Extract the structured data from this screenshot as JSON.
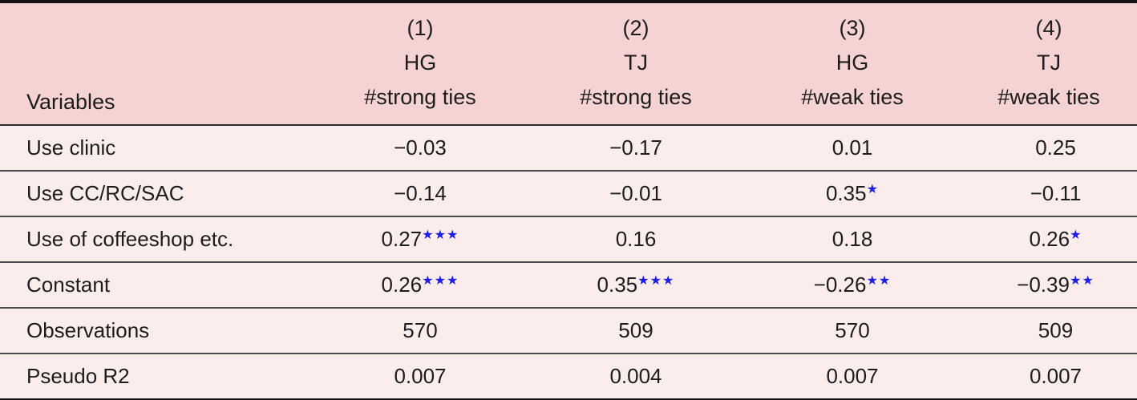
{
  "table": {
    "header": {
      "variables_label": "Variables",
      "columns": [
        {
          "num": "(1)",
          "group": "HG",
          "measure": "#strong ties"
        },
        {
          "num": "(2)",
          "group": "TJ",
          "measure": "#strong ties"
        },
        {
          "num": "(3)",
          "group": "HG",
          "measure": "#weak ties"
        },
        {
          "num": "(4)",
          "group": "TJ",
          "measure": "#weak ties"
        }
      ]
    },
    "rows": [
      {
        "label": "Use clinic",
        "cells": [
          {
            "v": "−0.03",
            "s": ""
          },
          {
            "v": "−0.17",
            "s": ""
          },
          {
            "v": "0.01",
            "s": ""
          },
          {
            "v": "0.25",
            "s": ""
          }
        ]
      },
      {
        "label": "Use CC/RC/SAC",
        "cells": [
          {
            "v": "−0.14",
            "s": ""
          },
          {
            "v": "−0.01",
            "s": ""
          },
          {
            "v": "0.35",
            "s": "★"
          },
          {
            "v": "−0.11",
            "s": ""
          }
        ]
      },
      {
        "label": "Use of coffeeshop etc.",
        "cells": [
          {
            "v": "0.27",
            "s": "★★★"
          },
          {
            "v": "0.16",
            "s": ""
          },
          {
            "v": "0.18",
            "s": ""
          },
          {
            "v": "0.26",
            "s": "★"
          }
        ]
      },
      {
        "label": "Constant",
        "cells": [
          {
            "v": "0.26",
            "s": "★★★"
          },
          {
            "v": "0.35",
            "s": "★★★"
          },
          {
            "v": "−0.26",
            "s": "★★"
          },
          {
            "v": "−0.39",
            "s": "★★"
          }
        ]
      },
      {
        "label": "Observations",
        "cells": [
          {
            "v": "570",
            "s": ""
          },
          {
            "v": "509",
            "s": ""
          },
          {
            "v": "570",
            "s": ""
          },
          {
            "v": "509",
            "s": ""
          }
        ]
      },
      {
        "label": "Pseudo R2",
        "cells": [
          {
            "v": "0.007",
            "s": ""
          },
          {
            "v": "0.004",
            "s": ""
          },
          {
            "v": "0.007",
            "s": ""
          },
          {
            "v": "0.007",
            "s": ""
          }
        ]
      }
    ],
    "colors": {
      "header_bg": "#f5d3d2",
      "row_bg": "#fbedeb",
      "significance_star": "#1d1de8",
      "border": "#141414",
      "rule": "#4b4b4b",
      "text": "#1c1c1c"
    }
  }
}
